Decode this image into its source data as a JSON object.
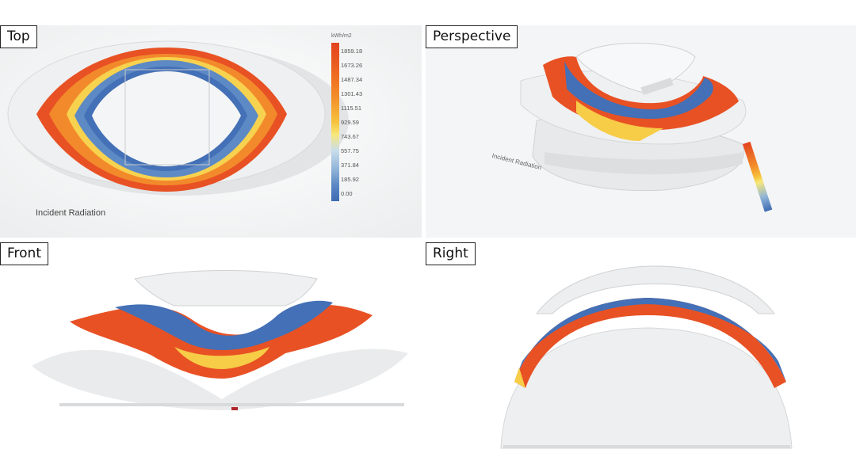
{
  "viewports": {
    "top": {
      "label": "Top"
    },
    "perspective": {
      "label": "Perspective"
    },
    "front": {
      "label": "Front"
    },
    "right": {
      "label": "Right"
    }
  },
  "legend": {
    "unit": "kWh/m2",
    "ticks": [
      "1859.18",
      "1673.26",
      "1487.34",
      "1301.43",
      "1115.51",
      "929.59",
      "743.67",
      "557.75",
      "371.84",
      "185.92",
      "0.00"
    ],
    "colors": [
      "#e3431e",
      "#ee6a22",
      "#f3902b",
      "#f7c23b",
      "#f7e87a",
      "#c9ddec",
      "#8fb3d8",
      "#5a88c4",
      "#3f6bb2"
    ]
  },
  "caption": "Incident Radiation"
}
